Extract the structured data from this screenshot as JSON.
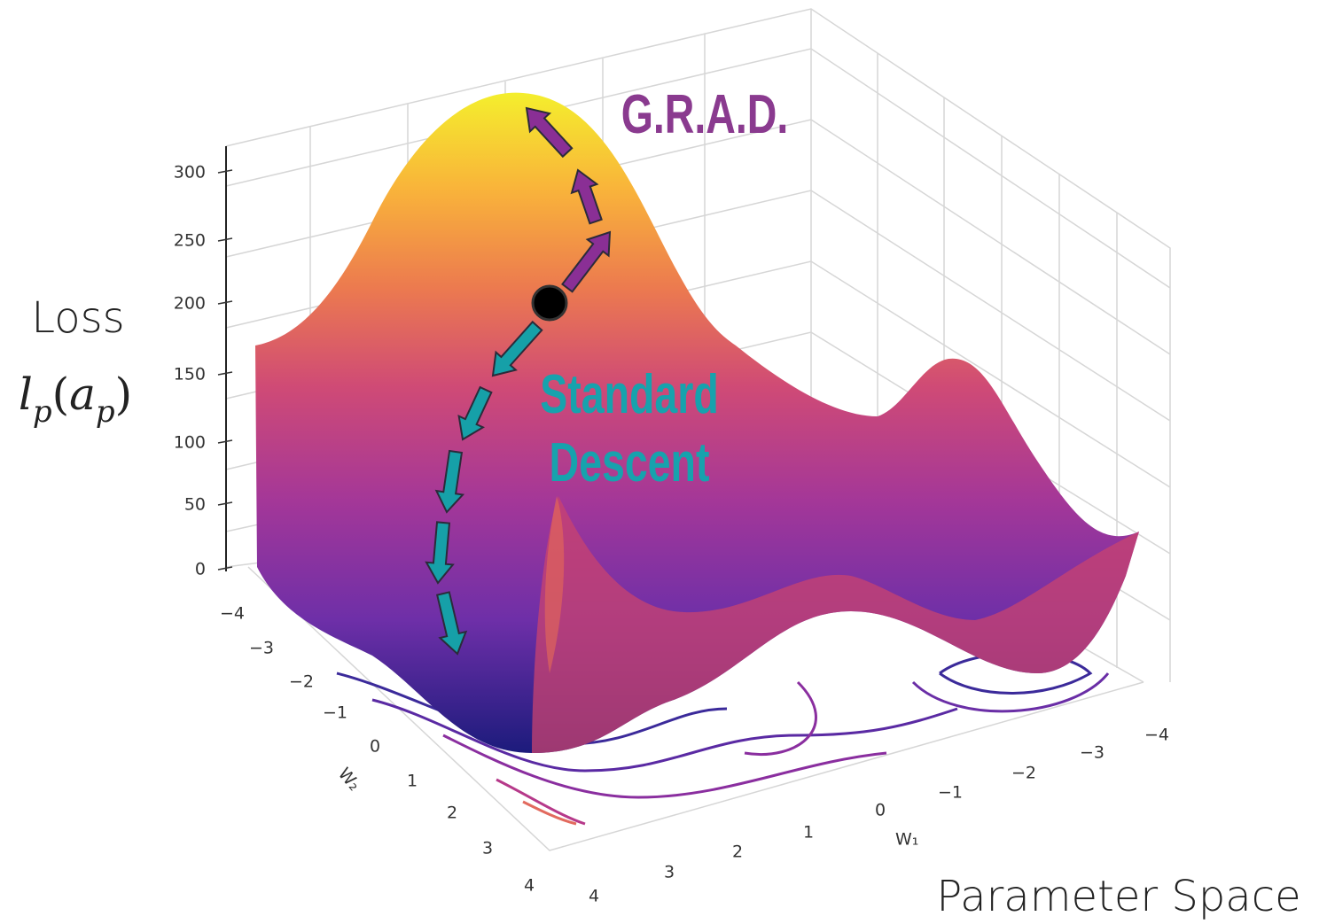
{
  "axes": {
    "z": {
      "ticks": [
        "300",
        "250",
        "200",
        "150",
        "100",
        "50",
        "0"
      ]
    },
    "w2": {
      "label": "W₂",
      "ticks": [
        "−4",
        "−3",
        "−2",
        "−1",
        "0",
        "1",
        "2",
        "3",
        "4"
      ]
    },
    "w1": {
      "label": "W₁",
      "ticks": [
        "4",
        "3",
        "2",
        "1",
        "0",
        "−1",
        "−2",
        "−3",
        "−4"
      ]
    }
  },
  "loss_label": "Loss",
  "loss_formula": [
    "l",
    "p",
    "(",
    "a",
    "p",
    ")"
  ],
  "annotations": {
    "ascent": "G.R.A.D.",
    "descent": [
      "Standard",
      "Descent"
    ]
  },
  "parameter_label": "Parameter Space"
}
